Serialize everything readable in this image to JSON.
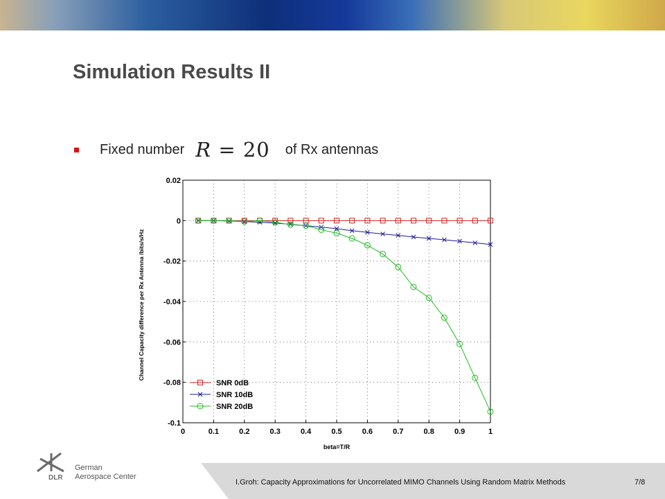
{
  "slide": {
    "title": "Simulation Results II",
    "bullet_before": "Fixed number",
    "math_var": "R",
    "math_rest": "= 20",
    "bullet_after": "of Rx antennas"
  },
  "footer": {
    "org_line1": "German",
    "org_line2": "Aerospace Center",
    "logo_text": "DLR",
    "citation": "I.Groh: Capacity Approximations for Uncorrelated MIMO Channels Using Random Matrix Methods",
    "page": "7/8"
  },
  "colors": {
    "title": "#4a4a4a",
    "bullet": "#dd1111",
    "series_0db": "#cc2222",
    "series_10db": "#1a1a99",
    "series_20db": "#22bb22"
  },
  "chart_data": {
    "type": "line",
    "xlabel": "beta=T/R",
    "ylabel": "Channel Capacity difference per Rx Antenna /bits/s/Hz",
    "xlim": [
      0,
      1
    ],
    "ylim": [
      -0.1,
      0.02
    ],
    "xticks": [
      "0",
      "0.1",
      "0.2",
      "0.3",
      "0.4",
      "0.5",
      "0.6",
      "0.7",
      "0.8",
      "0.9",
      "1"
    ],
    "yticks": [
      "0.02",
      "0",
      "-0.02",
      "-0.04",
      "-0.06",
      "-0.08",
      "-0.1"
    ],
    "grid": true,
    "legend_position": "bottom-left",
    "x": [
      0.05,
      0.1,
      0.15,
      0.2,
      0.25,
      0.3,
      0.35,
      0.4,
      0.45,
      0.5,
      0.55,
      0.6,
      0.65,
      0.7,
      0.75,
      0.8,
      0.85,
      0.9,
      0.95,
      1.0
    ],
    "series": [
      {
        "name": "SNR 0dB",
        "marker": "square",
        "values": [
          0,
          0,
          0,
          0,
          0,
          0,
          0,
          0,
          0,
          0,
          0,
          0,
          0,
          0,
          0,
          0,
          0,
          0,
          0,
          0
        ]
      },
      {
        "name": "SNR 10dB",
        "marker": "x",
        "values": [
          0,
          0,
          -0.0002,
          -0.0005,
          -0.0008,
          -0.0012,
          -0.0018,
          -0.0025,
          -0.0032,
          -0.004,
          -0.005,
          -0.0058,
          -0.0066,
          -0.0073,
          -0.0081,
          -0.0088,
          -0.0095,
          -0.0102,
          -0.011,
          -0.0118
        ]
      },
      {
        "name": "SNR 20dB",
        "marker": "circle",
        "values": [
          0,
          0,
          0,
          -0.0005,
          0,
          -0.0008,
          -0.002,
          -0.0025,
          -0.0045,
          -0.0062,
          -0.0088,
          -0.0122,
          -0.0165,
          -0.023,
          -0.0328,
          -0.0382,
          -0.048,
          -0.061,
          -0.0778,
          -0.0945
        ]
      }
    ]
  }
}
